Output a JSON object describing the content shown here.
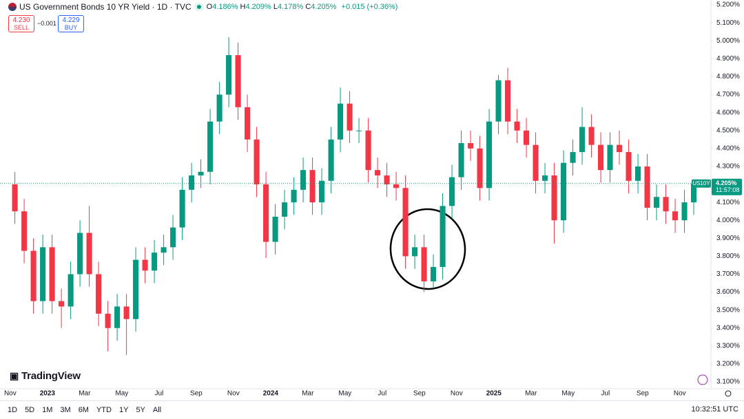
{
  "header": {
    "title": "US Government Bonds 10 YR Yield · 1D · TVC",
    "ohlc": [
      {
        "label": "O",
        "value": "4.186%"
      },
      {
        "label": "H",
        "value": "4.209%"
      },
      {
        "label": "L",
        "value": "4.178%"
      },
      {
        "label": "C",
        "value": "4.205%"
      }
    ],
    "change": "+0.015 (+0.36%)",
    "sell": {
      "price": "4.230",
      "label": "SELL"
    },
    "spread": "−0.001",
    "buy": {
      "price": "4.229",
      "label": "BUY"
    }
  },
  "chart_data": {
    "type": "candlestick",
    "up_color": "#089981",
    "down_color": "#f23645",
    "open": [
      4.2,
      4.05,
      3.83,
      3.55,
      3.85,
      3.55,
      3.52,
      3.7,
      3.93,
      3.7,
      3.48,
      3.4,
      3.52,
      3.45,
      3.78,
      3.72,
      3.82,
      3.85,
      3.96,
      4.17,
      4.25,
      4.27,
      4.55,
      4.7,
      4.92,
      4.63,
      4.45,
      4.2,
      3.88,
      4.02,
      4.1,
      4.17,
      4.28,
      4.1,
      4.22,
      4.45,
      4.65,
      4.5,
      4.5,
      4.28,
      4.25,
      4.2,
      4.18,
      3.8,
      3.85,
      3.66,
      3.74,
      4.08,
      4.24,
      4.43,
      4.4,
      4.18,
      4.55,
      4.78,
      4.55,
      4.5,
      4.42,
      4.22,
      4.25,
      4.0,
      4.32,
      4.38,
      4.52,
      4.42,
      4.28,
      4.42,
      4.38,
      4.22,
      4.3,
      4.07,
      4.13,
      4.05,
      4.0,
      4.1
    ],
    "high": [
      4.27,
      4.12,
      3.9,
      3.92,
      3.92,
      3.62,
      3.77,
      4.0,
      4.08,
      3.77,
      3.55,
      3.59,
      3.59,
      3.85,
      3.85,
      3.89,
      3.92,
      4.03,
      4.24,
      4.32,
      4.34,
      4.62,
      4.77,
      5.02,
      4.99,
      4.7,
      4.52,
      4.27,
      4.09,
      4.17,
      4.24,
      4.35,
      4.35,
      4.29,
      4.52,
      4.74,
      4.72,
      4.57,
      4.57,
      4.35,
      4.32,
      4.27,
      4.25,
      3.92,
      3.92,
      3.81,
      4.15,
      4.31,
      4.5,
      4.5,
      4.47,
      4.62,
      4.81,
      4.85,
      4.62,
      4.57,
      4.49,
      4.32,
      4.32,
      4.39,
      4.45,
      4.63,
      4.59,
      4.49,
      4.49,
      4.5,
      4.45,
      4.37,
      4.37,
      4.2,
      4.2,
      4.12,
      4.17,
      4.21
    ],
    "low": [
      3.98,
      3.76,
      3.48,
      3.48,
      3.48,
      3.4,
      3.45,
      3.63,
      3.63,
      3.41,
      3.27,
      3.33,
      3.25,
      3.38,
      3.65,
      3.65,
      3.75,
      3.78,
      3.89,
      4.1,
      4.18,
      4.2,
      4.48,
      4.63,
      4.56,
      4.38,
      4.13,
      3.79,
      3.81,
      3.95,
      4.03,
      4.1,
      4.03,
      4.03,
      4.15,
      4.38,
      4.43,
      4.43,
      4.21,
      4.18,
      4.13,
      4.11,
      3.73,
      3.73,
      3.6,
      3.62,
      3.67,
      4.01,
      4.17,
      4.33,
      4.11,
      4.11,
      4.48,
      4.48,
      4.43,
      4.35,
      4.15,
      4.15,
      3.87,
      3.93,
      4.25,
      4.31,
      4.35,
      4.21,
      4.21,
      4.31,
      4.15,
      4.15,
      4.0,
      4.0,
      3.98,
      3.93,
      3.93,
      4.03
    ],
    "close": [
      4.05,
      3.83,
      3.55,
      3.85,
      3.55,
      3.52,
      3.7,
      3.93,
      3.7,
      3.48,
      3.4,
      3.52,
      3.45,
      3.78,
      3.72,
      3.82,
      3.85,
      3.96,
      4.17,
      4.25,
      4.27,
      4.55,
      4.7,
      4.92,
      4.63,
      4.45,
      4.2,
      3.88,
      4.02,
      4.1,
      4.17,
      4.28,
      4.1,
      4.22,
      4.45,
      4.65,
      4.5,
      4.5,
      4.28,
      4.25,
      4.2,
      4.18,
      3.8,
      3.85,
      3.66,
      3.74,
      4.08,
      4.24,
      4.43,
      4.4,
      4.18,
      4.55,
      4.78,
      4.55,
      4.5,
      4.42,
      4.22,
      4.25,
      4.0,
      4.32,
      4.38,
      4.52,
      4.42,
      4.28,
      4.42,
      4.38,
      4.22,
      4.3,
      4.07,
      4.13,
      4.05,
      4.0,
      4.1,
      4.205
    ],
    "xlim": [
      -1.6,
      74.7
    ],
    "xticks": [
      {
        "value": -0.5,
        "label": "Nov"
      },
      {
        "value": 3.5,
        "label": "2023"
      },
      {
        "value": 7.5,
        "label": "Mar"
      },
      {
        "value": 11.5,
        "label": "May"
      },
      {
        "value": 15.5,
        "label": "Jul"
      },
      {
        "value": 19.5,
        "label": "Sep"
      },
      {
        "value": 23.5,
        "label": "Nov"
      },
      {
        "value": 27.5,
        "label": "2024"
      },
      {
        "value": 31.5,
        "label": "Mar"
      },
      {
        "value": 35.5,
        "label": "May"
      },
      {
        "value": 39.5,
        "label": "Jul"
      },
      {
        "value": 43.5,
        "label": "Sep"
      },
      {
        "value": 47.5,
        "label": "Nov"
      },
      {
        "value": 51.5,
        "label": "2025"
      },
      {
        "value": 55.5,
        "label": "Mar"
      },
      {
        "value": 59.5,
        "label": "May"
      },
      {
        "value": 63.5,
        "label": "Jul"
      },
      {
        "value": 67.5,
        "label": "Sep"
      },
      {
        "value": 71.5,
        "label": "Nov"
      }
    ],
    "ylim": [
      3.062,
      5.227
    ],
    "yticks": [
      {
        "value": 5.2,
        "label": "5.200%"
      },
      {
        "value": 5.1,
        "label": "5.100%"
      },
      {
        "value": 5.0,
        "label": "5.000%"
      },
      {
        "value": 4.9,
        "label": "4.900%"
      },
      {
        "value": 4.8,
        "label": "4.800%"
      },
      {
        "value": 4.7,
        "label": "4.700%"
      },
      {
        "value": 4.6,
        "label": "4.600%"
      },
      {
        "value": 4.5,
        "label": "4.500%"
      },
      {
        "value": 4.4,
        "label": "4.400%"
      },
      {
        "value": 4.3,
        "label": "4.300%"
      },
      {
        "value": 4.2,
        "label": "4.200%"
      },
      {
        "value": 4.1,
        "label": "4.100%"
      },
      {
        "value": 4.0,
        "label": "4.000%"
      },
      {
        "value": 3.9,
        "label": "3.900%"
      },
      {
        "value": 3.8,
        "label": "3.800%"
      },
      {
        "value": 3.7,
        "label": "3.700%"
      },
      {
        "value": 3.6,
        "label": "3.600%"
      },
      {
        "value": 3.5,
        "label": "3.500%"
      },
      {
        "value": 3.4,
        "label": "3.400%"
      },
      {
        "value": 3.3,
        "label": "3.300%"
      },
      {
        "value": 3.2,
        "label": "3.200%"
      },
      {
        "value": 3.1,
        "label": "3.100%"
      }
    ],
    "price_tag": {
      "symbol": "US10Y",
      "label": "4.205%",
      "countdown": "11:57:08"
    }
  },
  "footer": {
    "logo": "TradingView",
    "ranges": [
      "1D",
      "5D",
      "1M",
      "3M",
      "6M",
      "YTD",
      "1Y",
      "5Y",
      "All"
    ],
    "clock": "10:32:51 UTC"
  }
}
